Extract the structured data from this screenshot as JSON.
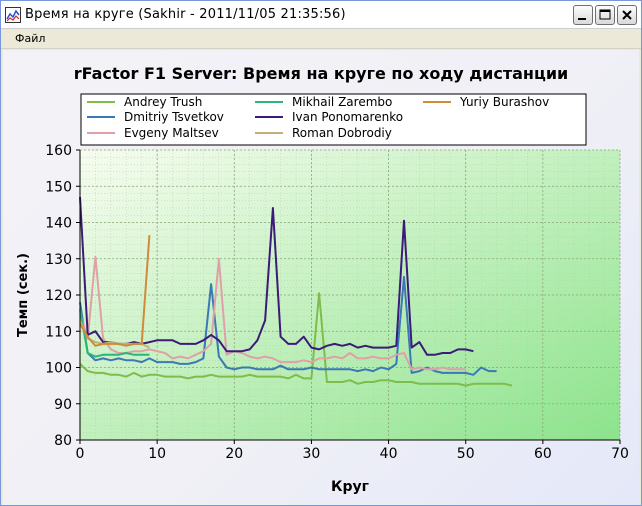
{
  "window": {
    "title": "Время на круге (Sakhir - 2011/11/05 21:35:56)",
    "menu": [
      "Файл"
    ]
  },
  "colors": {
    "plot_bg_start": "#f7fcf0",
    "plot_bg_end": "#8be48b"
  },
  "chart_data": {
    "type": "line",
    "title": "rFactor F1 Server: Время на круге по ходу дистанции",
    "xlabel": "Круг",
    "ylabel": "Темп (сек.)",
    "xlim": [
      0,
      70
    ],
    "ylim": [
      80,
      160
    ],
    "xticks": [
      0,
      10,
      20,
      30,
      40,
      50,
      60,
      70
    ],
    "yticks": [
      80,
      90,
      100,
      110,
      120,
      130,
      140,
      150,
      160
    ],
    "grid": true,
    "legend_position": "top",
    "series": [
      {
        "name": "Andrey Trush",
        "color": "#7ebd4b",
        "x": [
          0,
          1,
          2,
          3,
          4,
          5,
          6,
          7,
          8,
          9,
          10,
          11,
          12,
          13,
          14,
          15,
          16,
          17,
          18,
          19,
          20,
          21,
          22,
          23,
          24,
          25,
          26,
          27,
          28,
          29,
          30,
          31,
          32,
          33,
          34,
          35,
          36,
          37,
          38,
          39,
          40,
          41,
          42,
          43,
          44,
          45,
          46,
          47,
          48,
          49,
          50,
          51,
          52,
          53,
          54,
          55,
          56
        ],
        "y": [
          101,
          99,
          98.5,
          98.5,
          98,
          98,
          97.5,
          98.5,
          97.5,
          98,
          98,
          97.5,
          97.5,
          97.5,
          97,
          97.5,
          97.5,
          98,
          97.5,
          97.5,
          97.5,
          97.5,
          98,
          97.5,
          97.5,
          97.5,
          97.5,
          97,
          98,
          97,
          97,
          120.5,
          96,
          96,
          96,
          96.5,
          95.5,
          96,
          96,
          96.5,
          96.5,
          96,
          96,
          96,
          95.5,
          95.5,
          95.5,
          95.5,
          95.5,
          95.5,
          95,
          95.5,
          95.5,
          95.5,
          95.5,
          95.5,
          95
        ]
      },
      {
        "name": "Dmitriy Tsvetkov",
        "color": "#3a78b6",
        "x": [
          0,
          1,
          2,
          3,
          4,
          5,
          6,
          7,
          8,
          9,
          10,
          11,
          12,
          13,
          14,
          15,
          16,
          17,
          18,
          19,
          20,
          21,
          22,
          23,
          24,
          25,
          26,
          27,
          28,
          29,
          30,
          31,
          32,
          33,
          34,
          35,
          36,
          37,
          38,
          39,
          40,
          41,
          42,
          43,
          44,
          45,
          46,
          47,
          48,
          49,
          50,
          51,
          52,
          53,
          54
        ],
        "y": [
          118,
          104,
          102,
          102.5,
          102,
          102.5,
          102,
          102,
          101.5,
          102.5,
          101.5,
          101.5,
          101.5,
          101,
          101,
          101.5,
          102.5,
          123,
          103,
          100,
          99.5,
          100,
          100,
          99.5,
          99.5,
          99.5,
          100.5,
          99.5,
          99.5,
          99.5,
          100,
          99.5,
          99.5,
          99.5,
          99.5,
          99.5,
          99,
          99.5,
          99,
          100,
          99.5,
          101,
          125,
          98.5,
          99,
          100,
          99,
          98.5,
          98.5,
          98.5,
          98.5,
          98,
          100,
          99,
          99
        ]
      },
      {
        "name": "Evgeny Maltsev",
        "color": "#e0a0a8",
        "x": [
          0,
          1,
          2,
          3,
          4,
          5,
          6,
          7,
          8,
          9,
          10,
          11,
          12,
          13,
          14,
          15,
          16,
          17,
          18,
          19,
          20,
          21,
          22,
          23,
          24,
          25,
          26,
          27,
          28,
          29,
          30,
          31,
          32,
          33,
          34,
          35,
          36,
          37,
          38,
          39,
          40,
          41,
          42,
          43,
          44,
          45,
          46,
          47,
          48,
          49,
          50
        ],
        "y": [
          115,
          108,
          130.5,
          108,
          105,
          104,
          104,
          104.5,
          104.5,
          105,
          104.5,
          104,
          102.5,
          103,
          102.5,
          103.5,
          104.5,
          106.5,
          130,
          103.5,
          104.5,
          104,
          103,
          102.5,
          103,
          102.5,
          101.5,
          101.5,
          101.5,
          102,
          101.5,
          102.5,
          102.5,
          103,
          102.5,
          104,
          102.5,
          102.5,
          103,
          102.5,
          102.5,
          103.5,
          104,
          99.5,
          100,
          99.5,
          99.5,
          100,
          99.5,
          99.5,
          99.5
        ]
      },
      {
        "name": "Mikhail Zarembo",
        "color": "#2ab57a",
        "x": [
          0,
          1,
          2,
          3,
          4,
          5,
          6,
          7,
          8,
          9
        ],
        "y": [
          116,
          104,
          103,
          103.5,
          103.5,
          103.5,
          104,
          103.5,
          103.5,
          103.5
        ]
      },
      {
        "name": "Ivan Ponomarenko",
        "color": "#3c1a7a",
        "x": [
          0,
          1,
          2,
          3,
          4,
          5,
          6,
          7,
          8,
          9,
          10,
          11,
          12,
          13,
          14,
          15,
          16,
          17,
          18,
          19,
          20,
          21,
          22,
          23,
          24,
          25,
          26,
          27,
          28,
          29,
          30,
          31,
          32,
          33,
          34,
          35,
          36,
          37,
          38,
          39,
          40,
          41,
          42,
          43,
          44,
          45,
          46,
          47,
          48,
          49,
          50,
          51
        ],
        "y": [
          147,
          109,
          110,
          107,
          107,
          106.5,
          106.5,
          107,
          106.5,
          107,
          107.5,
          107.5,
          107.5,
          106.5,
          106.5,
          106.5,
          107.5,
          109,
          107.5,
          104.5,
          104.5,
          104.5,
          105,
          107.5,
          113,
          144,
          108.5,
          106.5,
          106.5,
          108.5,
          105.5,
          105,
          106,
          106.5,
          106,
          106.5,
          105.5,
          106,
          105.5,
          105.5,
          105.5,
          106,
          140.5,
          105.5,
          107,
          103.5,
          103.5,
          104,
          104,
          105,
          105,
          104.5
        ]
      },
      {
        "name": "Roman Dobrodiy",
        "color": "#c2b079",
        "x": [
          0,
          1,
          2,
          3,
          4,
          5,
          6,
          7,
          8,
          9
        ],
        "y": [
          113,
          108,
          107,
          106.5,
          107,
          106.5,
          106.5,
          106.5,
          106.5,
          105.5
        ]
      },
      {
        "name": "Yuriy Burashov",
        "color": "#d08a3a",
        "x": [
          0,
          1,
          2,
          3,
          4,
          5,
          6,
          7,
          8,
          9
        ],
        "y": [
          112,
          108.5,
          106,
          106.5,
          106.5,
          106.5,
          106,
          106.5,
          106.5,
          136.5
        ]
      }
    ]
  }
}
